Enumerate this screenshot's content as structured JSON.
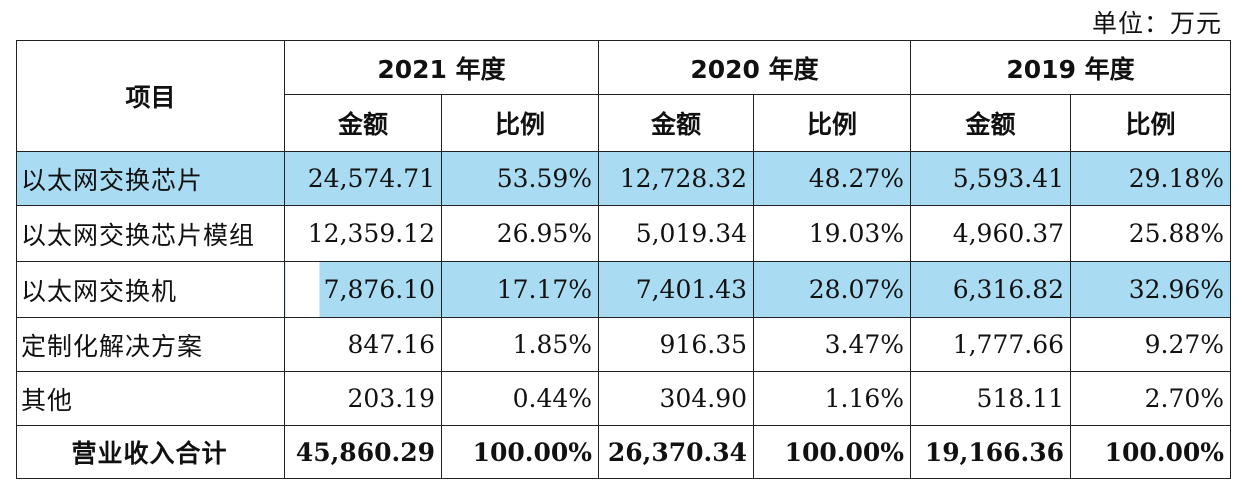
{
  "unit_label": "单位：万元",
  "header": {
    "item": "项目",
    "years": [
      "2021 年度",
      "2020 年度",
      "2019 年度"
    ],
    "amount": "金额",
    "ratio": "比例"
  },
  "rows": [
    {
      "name": "以太网交换芯片",
      "v": [
        "24,574.71",
        "53.59%",
        "12,728.32",
        "48.27%",
        "5,593.41",
        "29.18%"
      ]
    },
    {
      "name": "以太网交换芯片模组",
      "v": [
        "12,359.12",
        "26.95%",
        "5,019.34",
        "19.03%",
        "4,960.37",
        "25.88%"
      ]
    },
    {
      "name": "以太网交换机",
      "v": [
        "7,876.10",
        "17.17%",
        "7,401.43",
        "28.07%",
        "6,316.82",
        "32.96%"
      ]
    },
    {
      "name": "定制化解决方案",
      "v": [
        "847.16",
        "1.85%",
        "916.35",
        "3.47%",
        "1,777.66",
        "9.27%"
      ]
    },
    {
      "name": "其他",
      "v": [
        "203.19",
        "0.44%",
        "304.90",
        "1.16%",
        "518.11",
        "2.70%"
      ]
    },
    {
      "name": "营业收入合计",
      "v": [
        "45,860.29",
        "100.00%",
        "26,370.34",
        "100.00%",
        "19,166.36",
        "100.00%"
      ]
    }
  ],
  "highlight_color": "#a9dcf2"
}
